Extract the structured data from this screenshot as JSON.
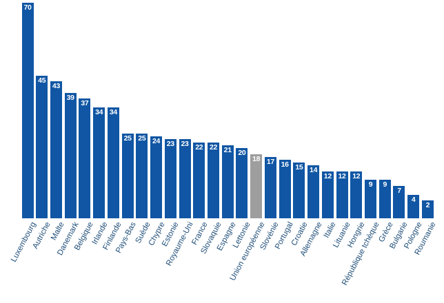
{
  "chart_data": {
    "type": "bar",
    "title": "",
    "xlabel": "",
    "ylabel": "",
    "ylim": [
      0,
      70
    ],
    "grid": false,
    "legend": false,
    "value_labels_position": "inside-top",
    "category_label_rotation_deg": -62,
    "categories": [
      "Luxembourg",
      "Autriche",
      "Malte",
      "Danemark",
      "Belgique",
      "Irlande",
      "Finlande",
      "Pays-Bas",
      "Suède",
      "Chypre",
      "Estonie",
      "Royaume-Uni",
      "France",
      "Slovaquie",
      "Espagne",
      "Lettonie",
      "Union européenne",
      "Slovénie",
      "Portugal",
      "Croatie",
      "Allemagne",
      "Italie",
      "Lituanie",
      "Hongrie",
      "République tchèque",
      "Grèce",
      "Bulgarie",
      "Pologne",
      "Roumanie"
    ],
    "values": [
      70,
      45,
      43,
      39,
      37,
      34,
      34,
      25,
      25,
      24,
      23,
      23,
      22,
      22,
      21,
      20,
      18,
      17,
      16,
      15,
      14,
      12,
      12,
      12,
      9,
      9,
      7,
      4,
      2
    ],
    "highlight_category": "Union européenne",
    "colors": {
      "bar": "#1056a4",
      "highlight_bar": "#9e9e9e",
      "value_label": "#ffffff",
      "category_label": "#1f4e79",
      "background": "#ffffff"
    }
  }
}
